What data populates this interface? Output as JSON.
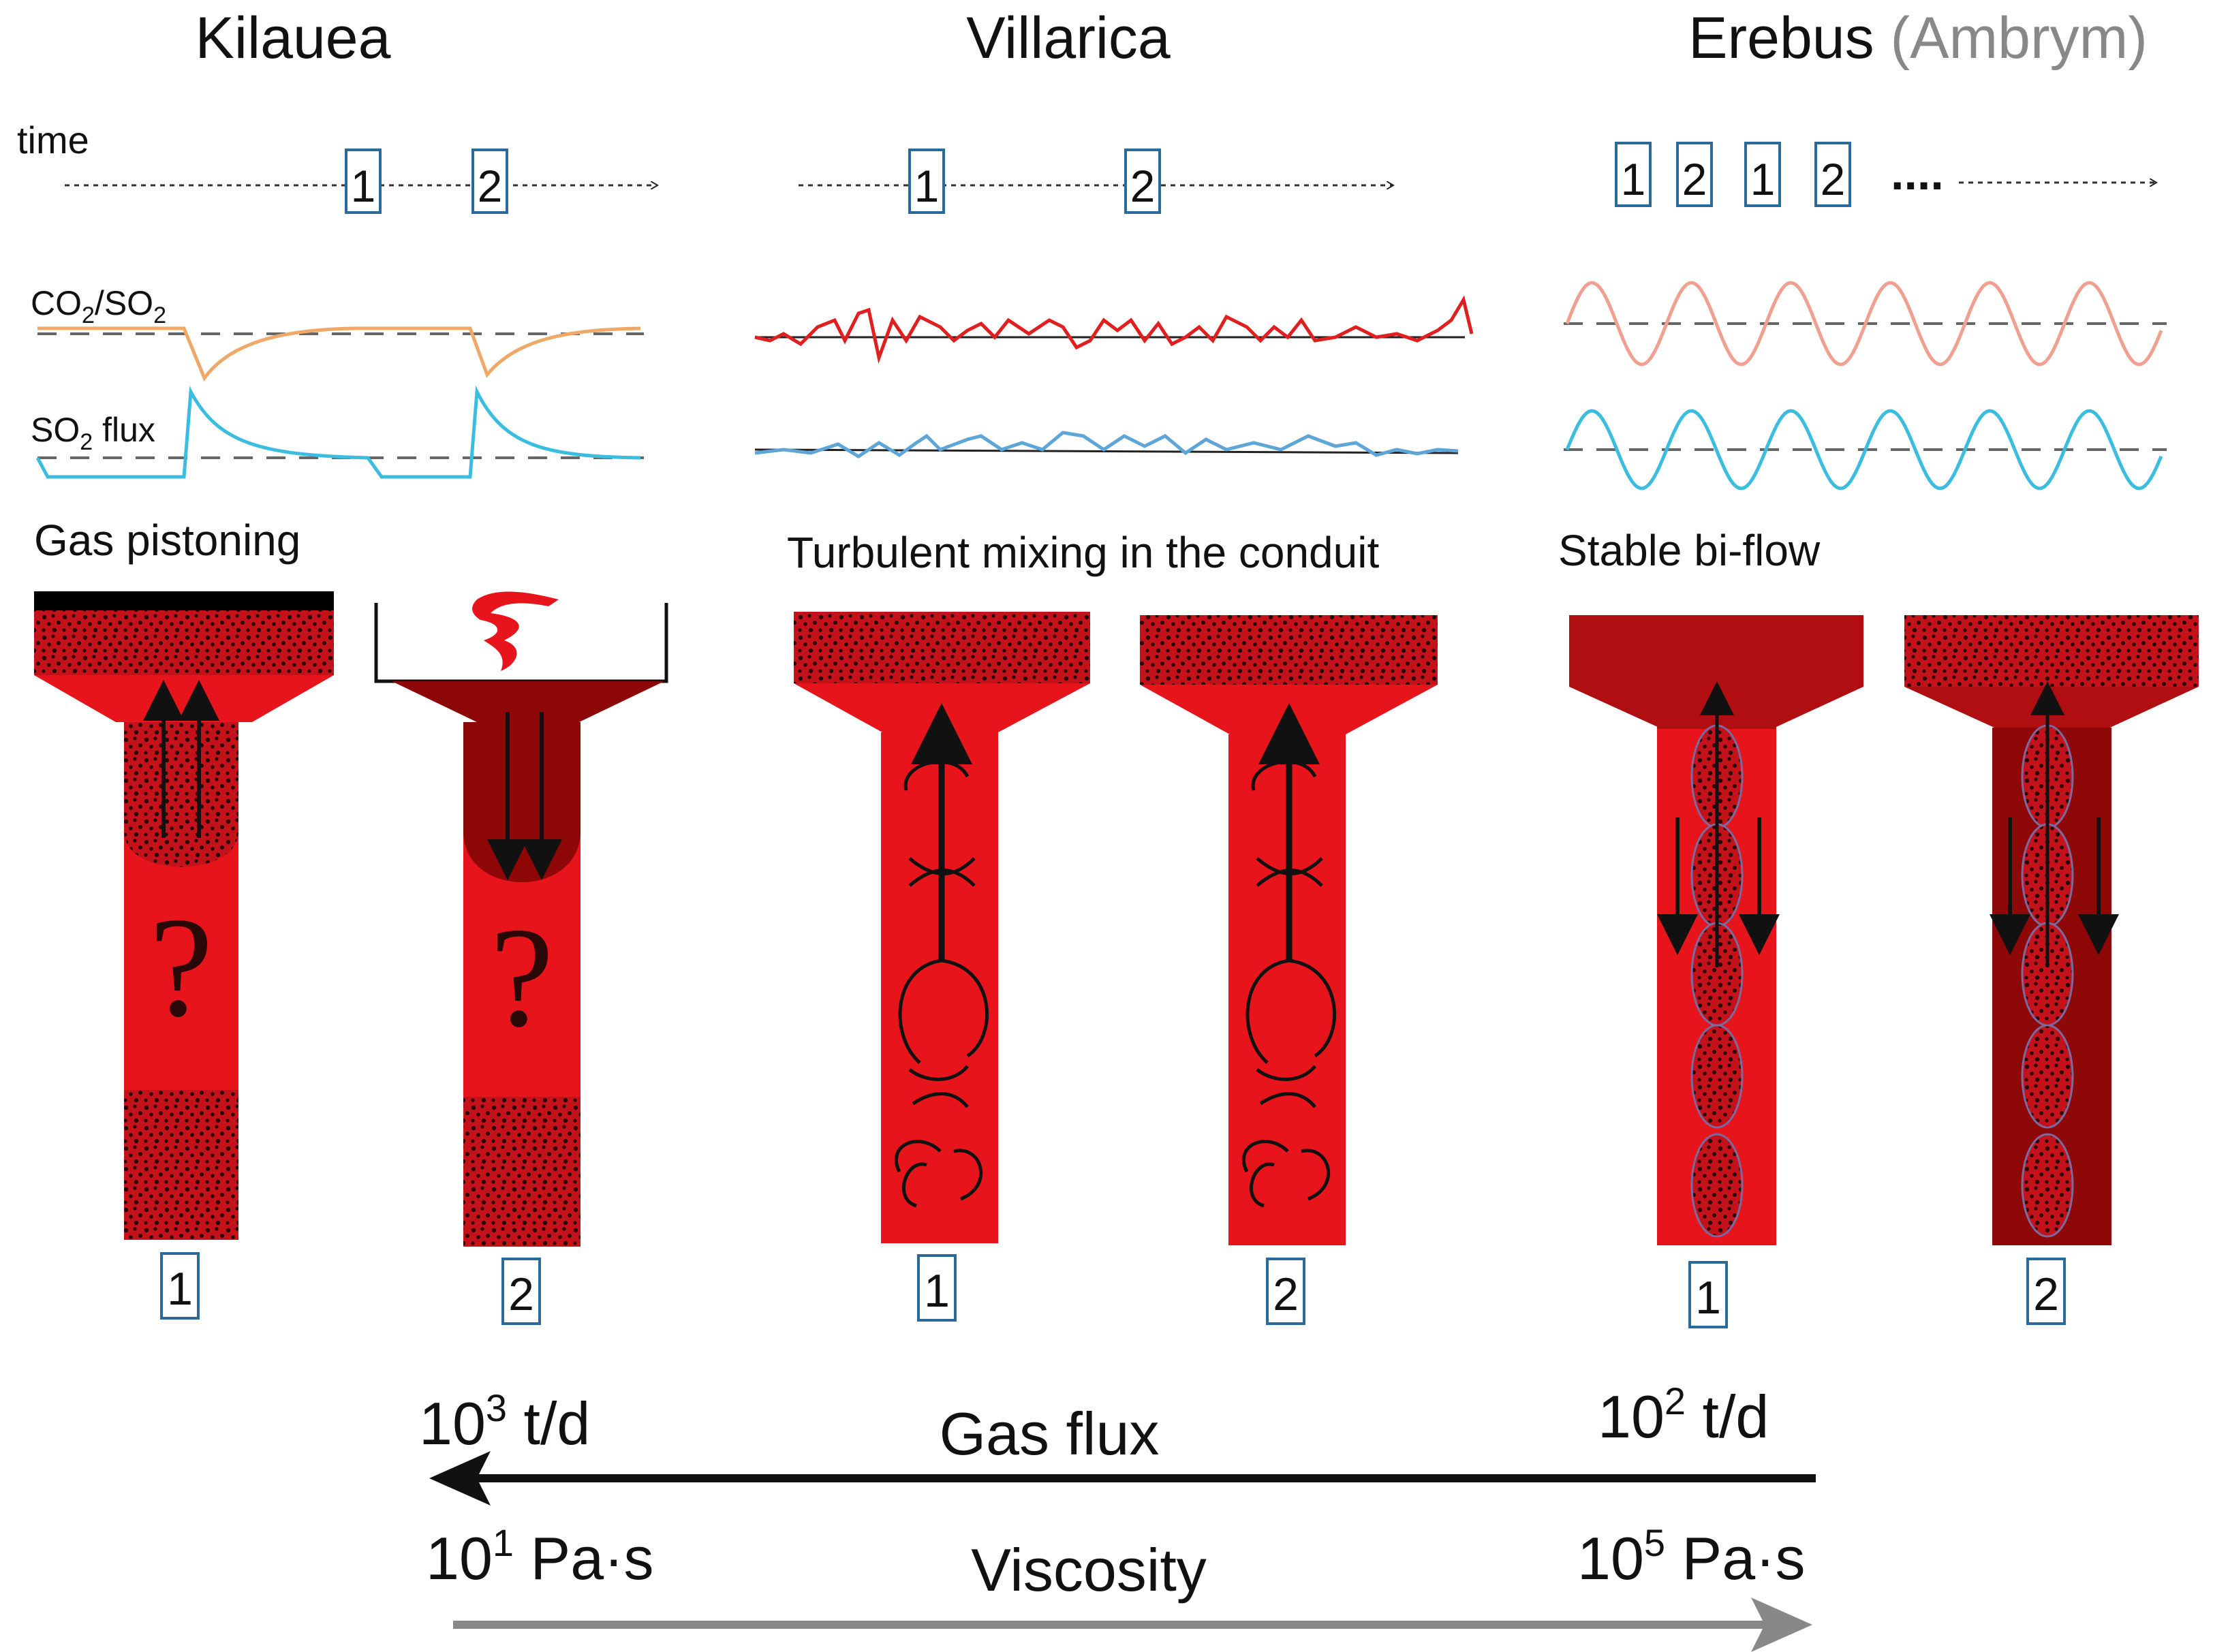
{
  "columns": [
    {
      "title": "Kilauea",
      "subtitle": "",
      "mode_label": "Gas pistoning",
      "time_boxes": [
        "1",
        "2"
      ],
      "conduit_labels": [
        "1",
        "2"
      ]
    },
    {
      "title": "Villarica",
      "subtitle": "",
      "mode_label": "Turbulent mixing in the conduit",
      "time_boxes": [
        "1",
        "2"
      ],
      "conduit_labels": [
        "1",
        "2"
      ]
    },
    {
      "title": "Erebus",
      "subtitle": "(Ambrym)",
      "mode_label": "Stable bi-flow",
      "time_boxes": [
        "1",
        "2",
        "1",
        "2"
      ],
      "conduit_labels": [
        "1",
        "2"
      ],
      "ellipsis": "...."
    }
  ],
  "time_label": "time",
  "ratio_label": {
    "main": "CO",
    "sub1": "2",
    "mid": "/SO",
    "sub2": "2"
  },
  "flux_label": {
    "main": "SO",
    "sub": "2",
    "rest": " flux"
  },
  "unknown_mark": "?",
  "gas_flux": {
    "label": "Gas flux",
    "left_base": "10",
    "left_exp": "3",
    "left_unit": " t/d",
    "right_base": "10",
    "right_exp": "2",
    "right_unit": " t/d"
  },
  "viscosity": {
    "label": "Viscosity",
    "left_base": "10",
    "left_exp": "1",
    "left_unit": " Pa·s",
    "right_base": "10",
    "right_exp": "5",
    "right_unit": " Pa·s"
  },
  "colors": {
    "bright_magma": "#e8141b",
    "dark_magma": "#b00e10",
    "degassed": "#8f0808",
    "co2so2_kilauea": "#f0a868",
    "so2_flux": "#3bbde0",
    "co2so2_villarica": "#e02020",
    "so2_villarica": "#5fa6d8",
    "co2so2_erebus": "#f0a090",
    "box_border": "#2a6a9a",
    "viscosity_arrow": "#888888"
  }
}
